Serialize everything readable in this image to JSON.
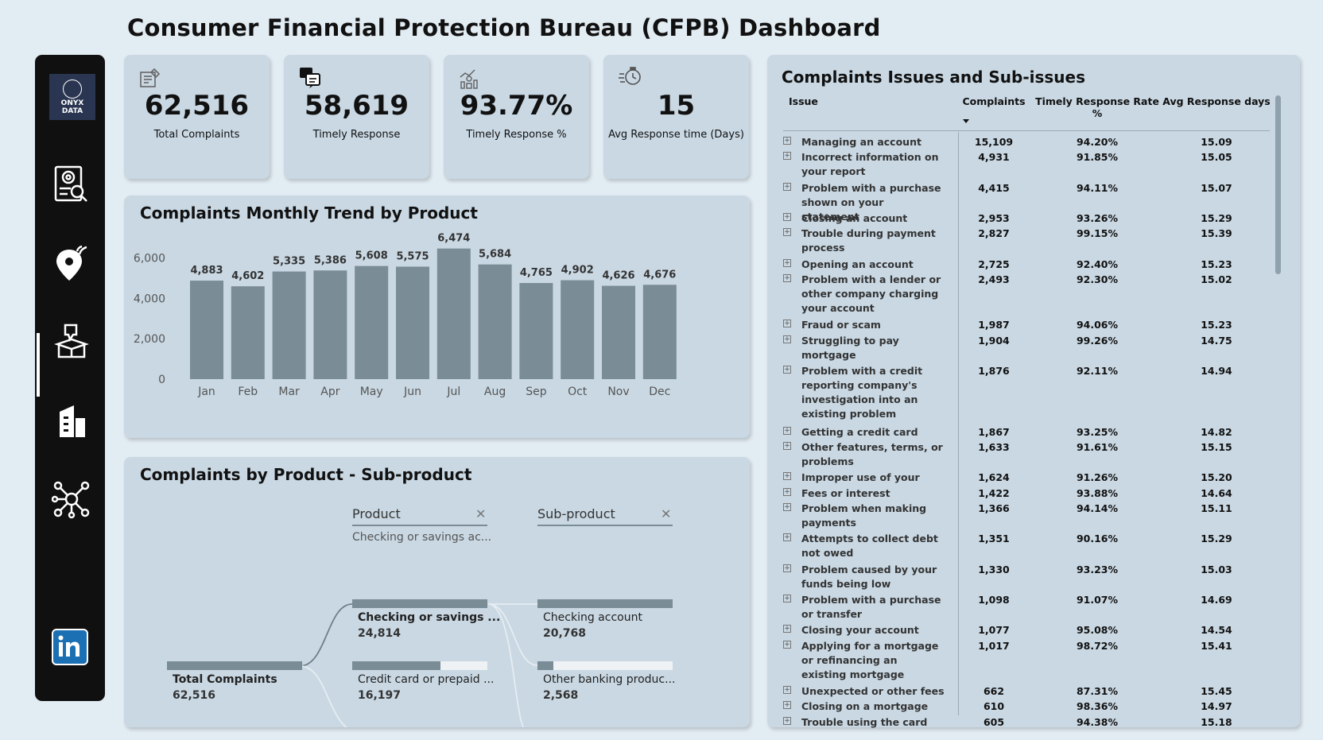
{
  "title": "Consumer Financial Protection Bureau (CFPB) Dashboard",
  "logo": {
    "line1": "ONYX",
    "line2": "DATA"
  },
  "sidebar": {
    "icons": [
      "report-search-icon",
      "location-pin-icon",
      "complaint-box-icon",
      "building-icon",
      "network-icon",
      "linkedin-icon"
    ]
  },
  "kpis": [
    {
      "value": "62,516",
      "label": "Total Complaints",
      "icon": "form-icon"
    },
    {
      "value": "58,619",
      "label": "Timely Response",
      "icon": "chat-icon"
    },
    {
      "value": "93.77%",
      "label": "Timely Response %",
      "icon": "chart-person-icon"
    },
    {
      "value": "15",
      "label": "Avg Response time (Days)",
      "icon": "clock-icon"
    }
  ],
  "trend": {
    "title": "Complaints Monthly Trend by Product",
    "yticks": [
      "6,000",
      "4,000",
      "2,000",
      "0"
    ]
  },
  "chart_data": {
    "type": "bar",
    "title": "Complaints Monthly Trend by Product",
    "categories": [
      "Jan",
      "Feb",
      "Mar",
      "Apr",
      "May",
      "Jun",
      "Jul",
      "Aug",
      "Sep",
      "Oct",
      "Nov",
      "Dec"
    ],
    "values": [
      4883,
      4602,
      5335,
      5386,
      5608,
      5575,
      6474,
      5684,
      4765,
      4902,
      4626,
      4676
    ],
    "data_labels": [
      "4,883",
      "4,602",
      "5,335",
      "5,386",
      "5,608",
      "5,575",
      "6,474",
      "5,684",
      "4,765",
      "4,902",
      "4,626",
      "4,676"
    ],
    "ylim": [
      0,
      6500
    ],
    "bar_color": "#7a8c96",
    "grid": false
  },
  "decomp": {
    "title": "Complaints by Product - Sub-product",
    "level1_header": "Product",
    "level1_filter": "Checking or savings ac...",
    "level2_header": "Sub-product",
    "root": {
      "name": "Total Complaints",
      "value": "62,516"
    },
    "products": [
      {
        "name": "Checking or savings ...",
        "value": "24,814",
        "share": 1.0
      },
      {
        "name": "Credit card or prepaid ...",
        "value": "16,197",
        "share": 0.65
      }
    ],
    "subproducts": [
      {
        "name": "Checking account",
        "value": "20,768",
        "share": 1.0
      },
      {
        "name": "Other banking produc...",
        "value": "2,568",
        "share": 0.12
      }
    ]
  },
  "issues": {
    "title": "Complaints Issues and Sub-issues",
    "headers": {
      "issue": "Issue",
      "complaints": "Complaints",
      "rate": "Timely Response Rate %",
      "days": "Avg Response days"
    },
    "rows": [
      {
        "issue": "Managing an account",
        "complaints": "15,109",
        "rate": "94.20%",
        "days": "15.09"
      },
      {
        "issue": "Incorrect information on your report",
        "complaints": "4,931",
        "rate": "91.85%",
        "days": "15.05"
      },
      {
        "issue": "Problem with a purchase shown on your statement",
        "complaints": "4,415",
        "rate": "94.11%",
        "days": "15.07"
      },
      {
        "issue": "Closing an account",
        "complaints": "2,953",
        "rate": "93.26%",
        "days": "15.29"
      },
      {
        "issue": "Trouble during payment process",
        "complaints": "2,827",
        "rate": "99.15%",
        "days": "15.39"
      },
      {
        "issue": "Opening an account",
        "complaints": "2,725",
        "rate": "92.40%",
        "days": "15.23"
      },
      {
        "issue": "Problem with a lender or other company charging your account",
        "complaints": "2,493",
        "rate": "92.30%",
        "days": "15.02"
      },
      {
        "issue": "Fraud or scam",
        "complaints": "1,987",
        "rate": "94.06%",
        "days": "15.23"
      },
      {
        "issue": "Struggling to pay mortgage",
        "complaints": "1,904",
        "rate": "99.26%",
        "days": "14.75"
      },
      {
        "issue": "Problem with a credit reporting company's investigation into an existing problem",
        "complaints": "1,876",
        "rate": "92.11%",
        "days": "14.94"
      },
      {
        "issue": "Getting a credit card",
        "complaints": "1,867",
        "rate": "93.25%",
        "days": "14.82"
      },
      {
        "issue": "Other features, terms, or problems",
        "complaints": "1,633",
        "rate": "91.61%",
        "days": "15.15"
      },
      {
        "issue": "Improper use of your",
        "complaints": "1,624",
        "rate": "91.26%",
        "days": "15.20"
      },
      {
        "issue": "Fees or interest",
        "complaints": "1,422",
        "rate": "93.88%",
        "days": "14.64"
      },
      {
        "issue": "Problem when making payments",
        "complaints": "1,366",
        "rate": "94.14%",
        "days": "15.11"
      },
      {
        "issue": "Attempts to collect debt not owed",
        "complaints": "1,351",
        "rate": "90.16%",
        "days": "15.29"
      },
      {
        "issue": "Problem caused by your funds being low",
        "complaints": "1,330",
        "rate": "93.23%",
        "days": "15.03"
      },
      {
        "issue": "Problem with a purchase or transfer",
        "complaints": "1,098",
        "rate": "91.07%",
        "days": "14.69"
      },
      {
        "issue": "Closing your account",
        "complaints": "1,077",
        "rate": "95.08%",
        "days": "14.54"
      },
      {
        "issue": "Applying for a mortgage or refinancing an existing mortgage",
        "complaints": "1,017",
        "rate": "98.72%",
        "days": "15.41"
      },
      {
        "issue": "Unexpected or other fees",
        "complaints": "662",
        "rate": "87.31%",
        "days": "15.45"
      },
      {
        "issue": "Closing on a mortgage",
        "complaints": "610",
        "rate": "98.36%",
        "days": "14.97"
      },
      {
        "issue": "Trouble using the card",
        "complaints": "605",
        "rate": "94.38%",
        "days": "15.18"
      }
    ]
  }
}
